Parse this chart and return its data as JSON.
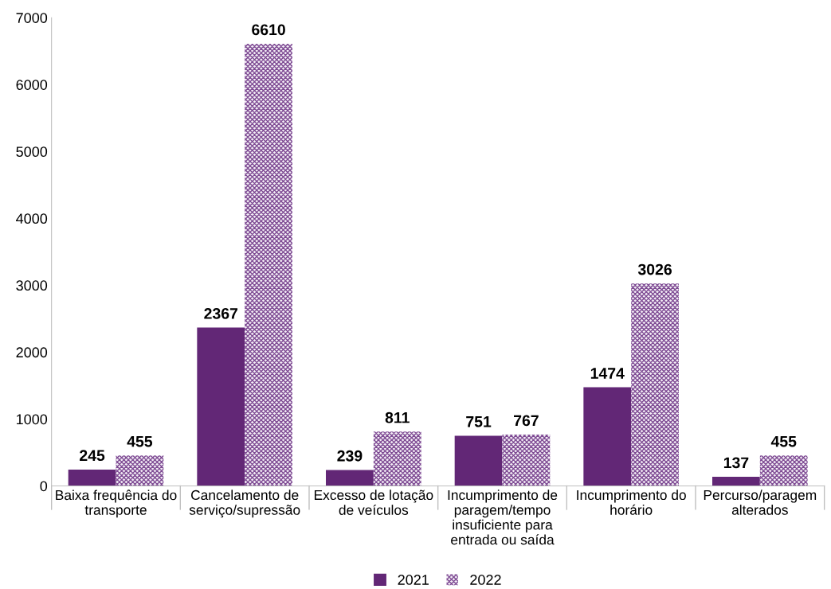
{
  "chart_data": {
    "type": "bar",
    "categories": [
      "Baixa frequência do transporte",
      "Cancelamento de serviço/supressão",
      "Excesso de lotação de veículos",
      "Incumprimento de paragem/tempo insuficiente para entrada ou saída",
      "Incumprimento do horário",
      "Percurso/paragem alterados"
    ],
    "series": [
      {
        "name": "2021",
        "color": "#622776",
        "values": [
          245,
          2367,
          239,
          751,
          1474,
          137
        ]
      },
      {
        "name": "2022",
        "color": "#7e4a93",
        "values": [
          455,
          6610,
          811,
          767,
          3026,
          455
        ]
      }
    ],
    "ylim": [
      0,
      7000
    ],
    "yticks": [
      0,
      1000,
      2000,
      3000,
      4000,
      5000,
      6000,
      7000
    ],
    "data_labels": true,
    "legend": "bottom",
    "grid": false
  }
}
